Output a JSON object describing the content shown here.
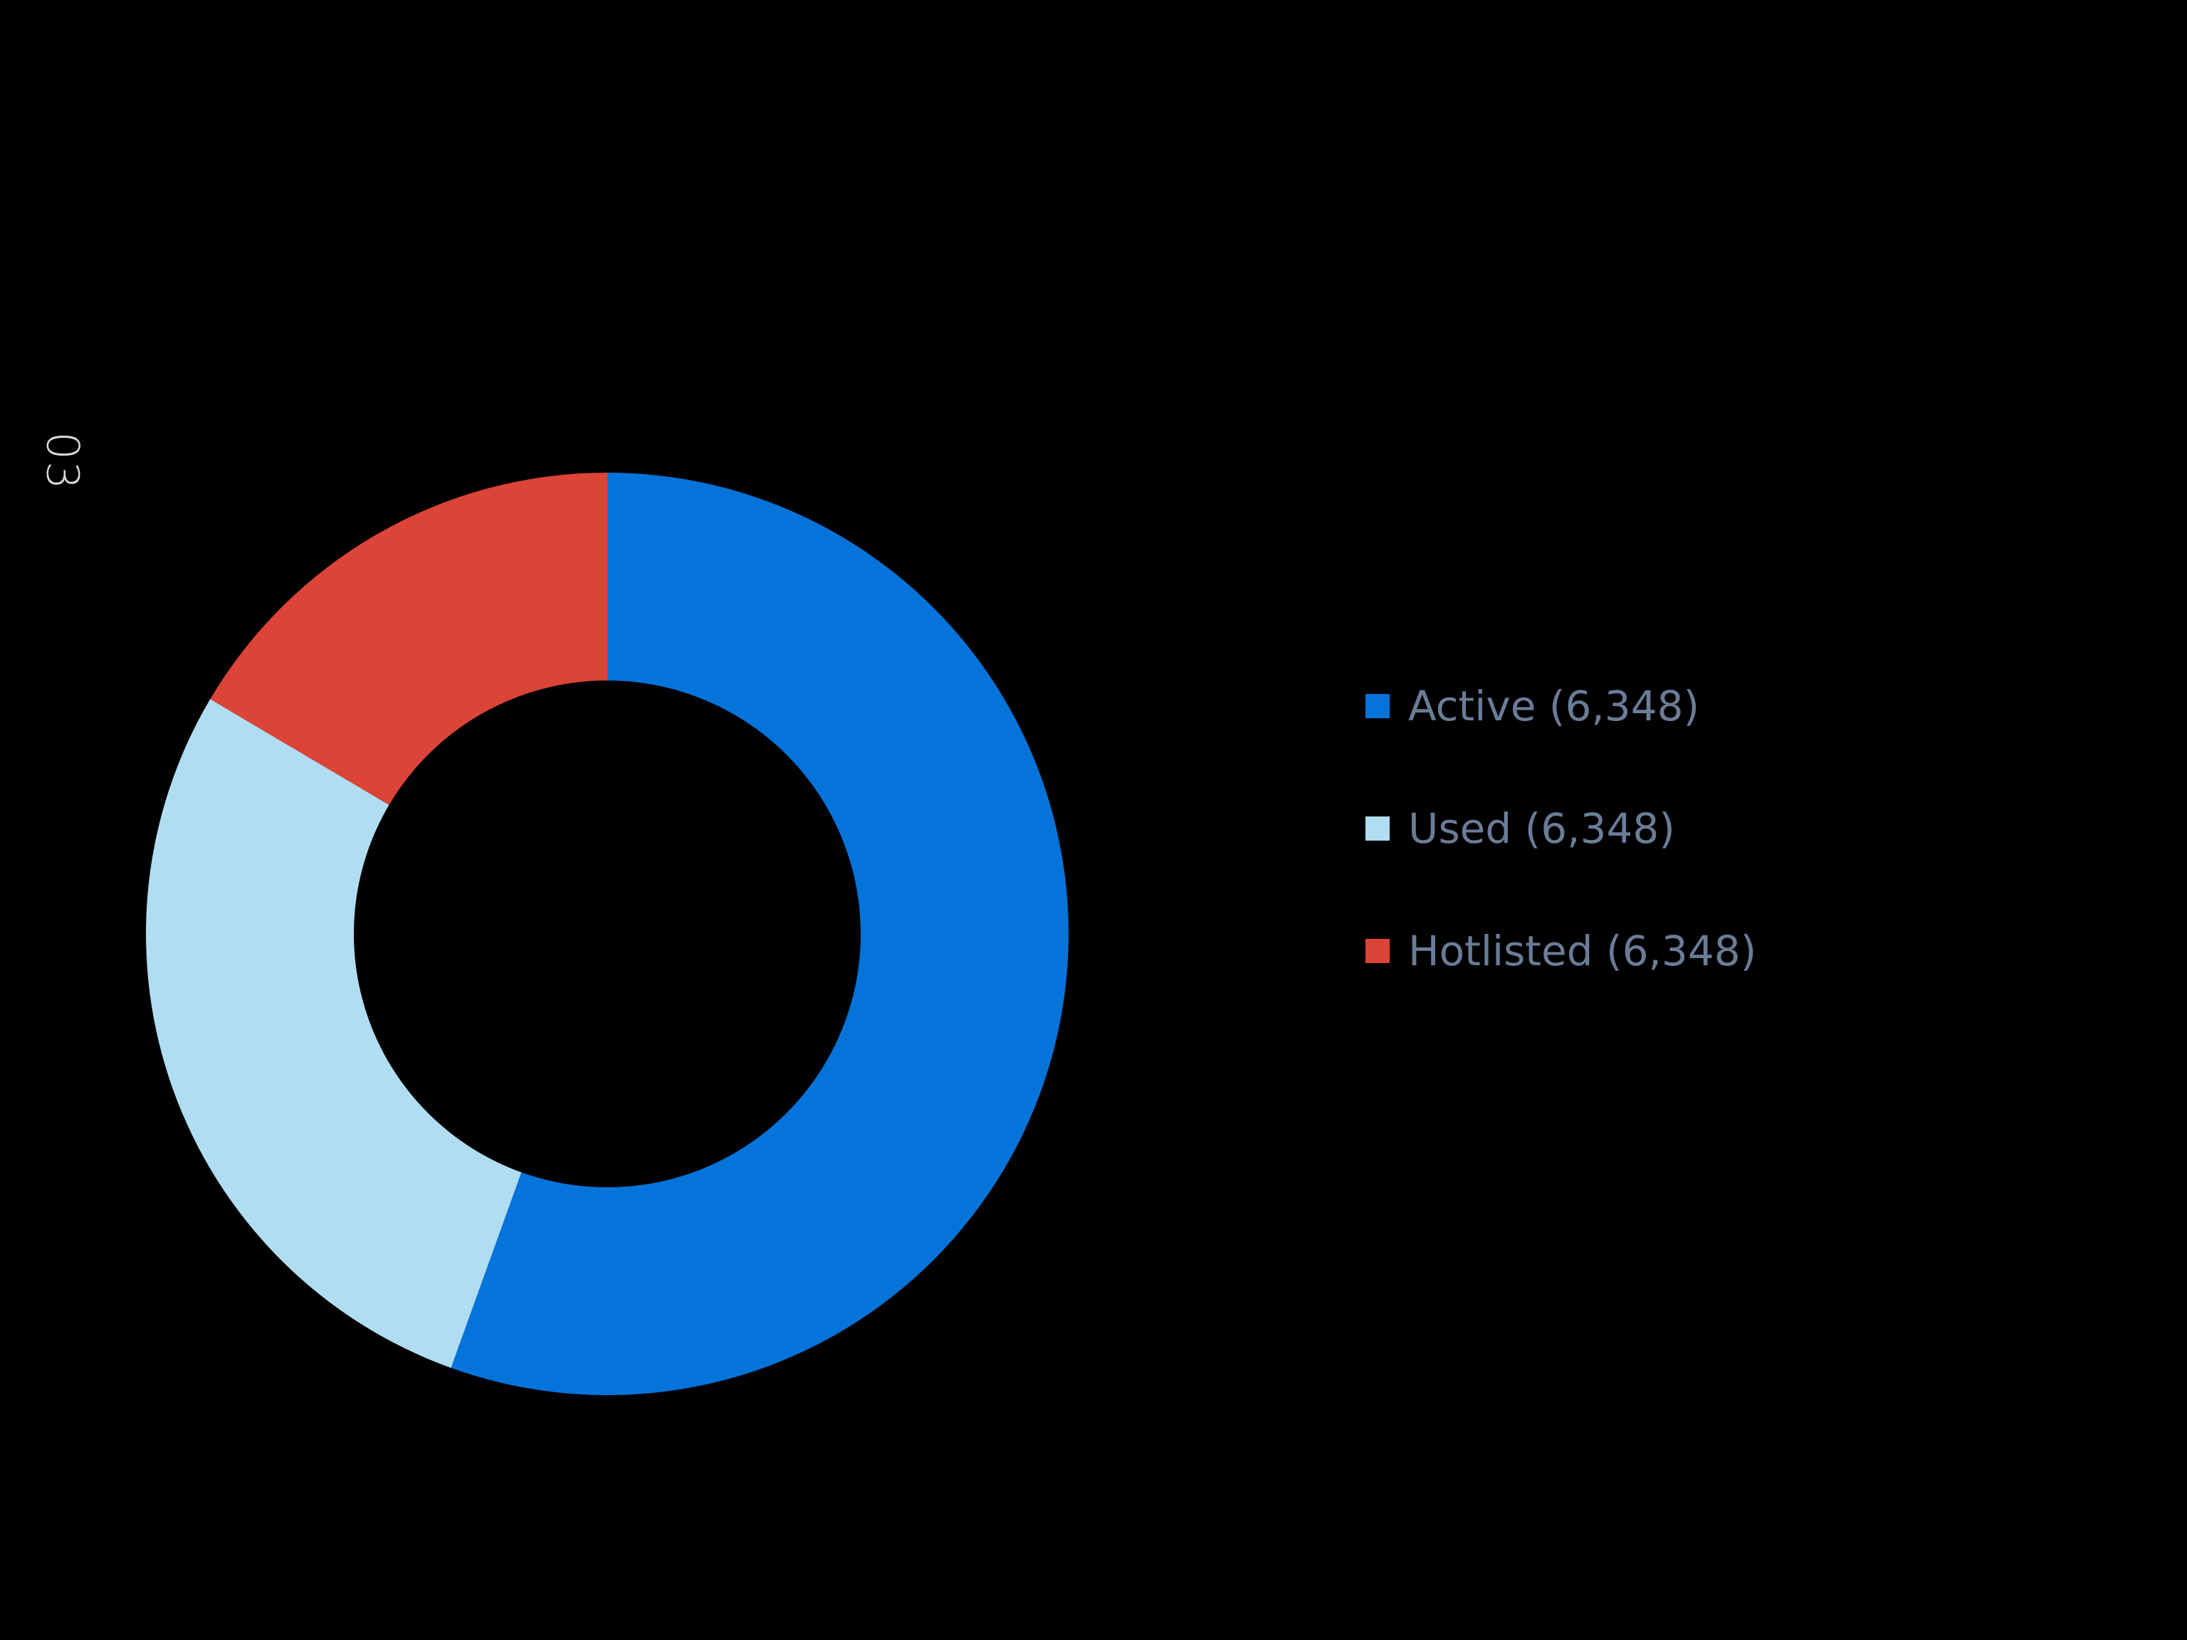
{
  "page": {
    "side_number": "03"
  },
  "chart_data": {
    "type": "pie",
    "variant": "donut",
    "slices": [
      {
        "label": "Active",
        "display": "Active (6,348)",
        "value": 55.5,
        "color": "#0474db"
      },
      {
        "label": "Used",
        "display": "Used (6,348)",
        "value": 28.0,
        "color": "#b0ddf1"
      },
      {
        "label": "Hotlisted",
        "display": "Hotlisted (6,348)",
        "value": 16.5,
        "color": "#db4437"
      }
    ],
    "start_angle": "top",
    "direction": "clockwise",
    "legend": "right",
    "title": ""
  },
  "colors": {
    "background": "#000000",
    "legend_text": "#6b7c97",
    "side_number": "#d9d9d9"
  }
}
